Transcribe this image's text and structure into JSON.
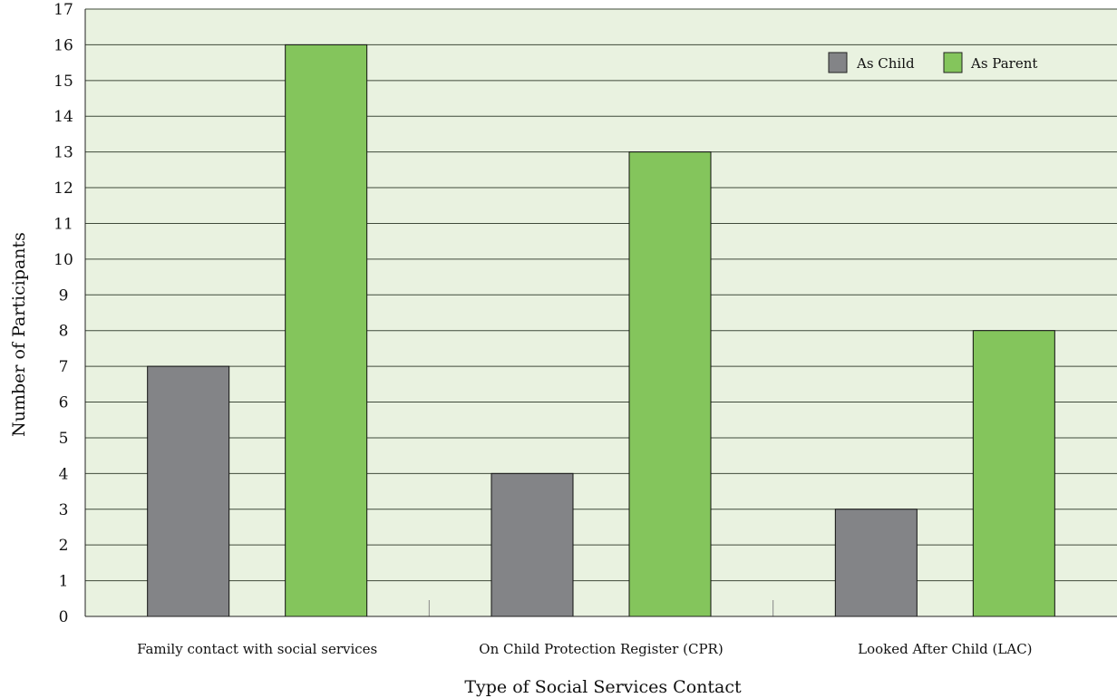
{
  "chart_data": {
    "type": "bar",
    "title": "",
    "xlabel": "Type of Social Services Contact",
    "ylabel": "Number of Participants",
    "categories": [
      "Family contact with social services",
      "On Child Protection Register (CPR)",
      "Looked After Child (LAC)"
    ],
    "series": [
      {
        "name": "As Child",
        "values": [
          7,
          4,
          3
        ],
        "color": "#838487"
      },
      {
        "name": "As Parent",
        "values": [
          16,
          13,
          8
        ],
        "color": "#84c55c"
      }
    ],
    "ylim": [
      0,
      17
    ],
    "yticks": [
      "0",
      "1",
      "2",
      "3",
      "4",
      "5",
      "6",
      "7",
      "8",
      "9",
      "10",
      "11",
      "12",
      "13",
      "14",
      "15",
      "16",
      "17"
    ],
    "grid": true,
    "legend_position": "top-right",
    "plot_background": "#e9f2e0",
    "grid_color": "#3f4a3a"
  }
}
